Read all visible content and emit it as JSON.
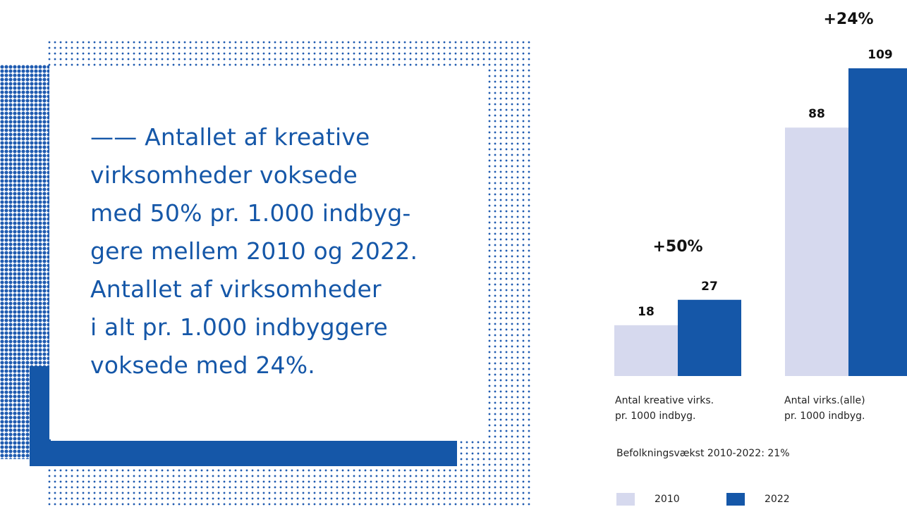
{
  "quote": {
    "text": "—— Antallet af kreative\nvirksomheder voksede\nmed 50% pr. 1.000 indbyg-\ngere mellem 2010 og 2022.\nAntallet af virksomheder\ni alt pr. 1.000 indbyggere\nvoksede med 24%."
  },
  "colors": {
    "series_2010": "#d6d9ee",
    "series_2022": "#1557a8",
    "accent": "#1557a8"
  },
  "chart_data": {
    "type": "bar",
    "categories": [
      "Antal kreative virks.\npr. 1000 indbyg.",
      "Antal virks.(alle)\npr. 1000 indbyg."
    ],
    "series": [
      {
        "name": "2010",
        "values": [
          18,
          88
        ]
      },
      {
        "name": "2022",
        "values": [
          27,
          109
        ]
      }
    ],
    "data_labels": [
      [
        "18",
        "27"
      ],
      [
        "88",
        "109"
      ]
    ],
    "growth_labels": [
      "+50%",
      "+24%"
    ],
    "ylim": [
      0,
      109
    ],
    "grid": false,
    "legend": "bottom",
    "note": "Befolkningsvækst 2010-2022: 21%"
  }
}
